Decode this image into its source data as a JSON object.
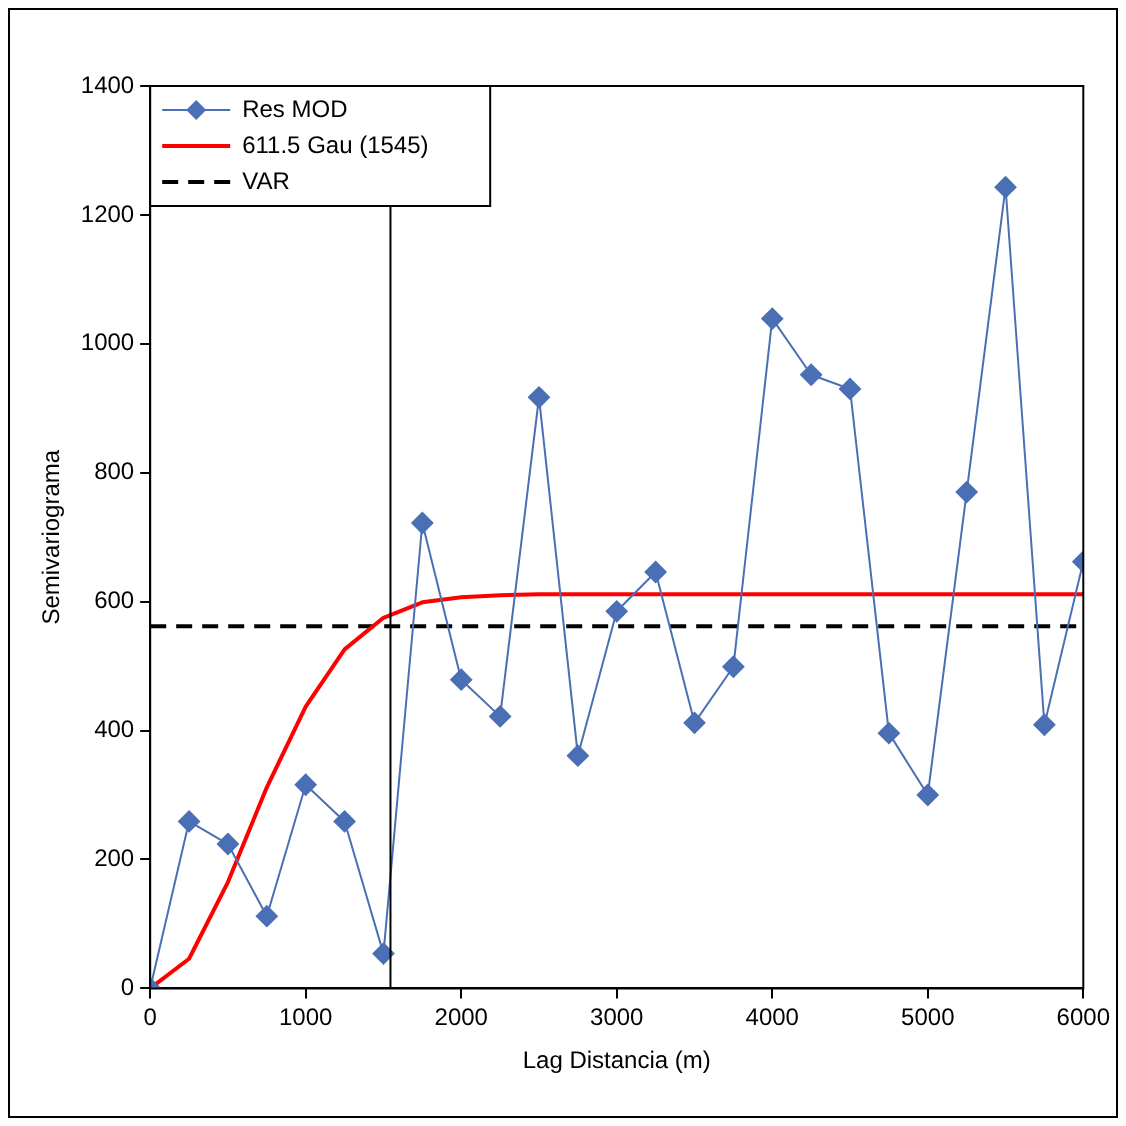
{
  "chart_data": {
    "type": "line",
    "xlabel": "Lag Distancia (m)",
    "ylabel": "Semivariograma",
    "x": [
      0,
      250,
      500,
      750,
      1000,
      1250,
      1500,
      1750,
      2000,
      2250,
      2500,
      2750,
      3000,
      3250,
      3500,
      3750,
      4000,
      4250,
      4500,
      4750,
      5000,
      5250,
      5500,
      5750,
      6000
    ],
    "series": [
      {
        "name": "Res MOD",
        "color": "#4a6fb5",
        "marker": "diamond",
        "values": [
          0,
          259,
          224,
          112,
          316,
          259,
          54,
          722,
          479,
          422,
          917,
          361,
          585,
          646,
          412,
          499,
          1039,
          952,
          930,
          396,
          300,
          770,
          1243,
          409,
          662
        ]
      },
      {
        "name": "611.5 Gau (1545)",
        "color": "#ff0000",
        "marker": "none",
        "x": [
          0,
          250,
          500,
          750,
          1000,
          1250,
          1500,
          1750,
          2000,
          2250,
          2500,
          6000
        ],
        "values": [
          0,
          46,
          165,
          312,
          437,
          526,
          575,
          599,
          607,
          610,
          611.5,
          611.5
        ]
      },
      {
        "name": "VAR",
        "color": "#000000",
        "marker": "none",
        "line_style": "dashed",
        "x": [
          0,
          6000
        ],
        "values": [
          562,
          562
        ]
      }
    ],
    "ref_lines": [
      {
        "axis": "x",
        "value": 1545,
        "color": "#000000"
      }
    ],
    "xlim": [
      0,
      6000
    ],
    "xticks": [
      0,
      1000,
      2000,
      3000,
      4000,
      5000,
      6000
    ],
    "ylim": [
      0,
      1400
    ],
    "yticks": [
      0,
      200,
      400,
      600,
      800,
      1000,
      1200,
      1400
    ],
    "grid": false,
    "legend": "top left"
  }
}
